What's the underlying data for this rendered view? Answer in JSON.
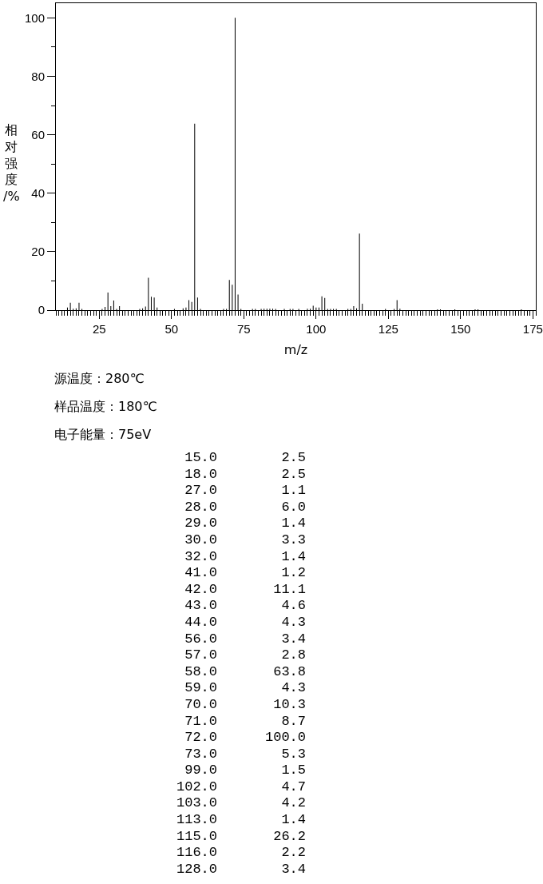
{
  "chart_data": [
    {
      "type": "bar",
      "xlabel": "m/z",
      "ylabel": "相对强度/%",
      "annotations": [
        "源温度：280℃",
        "样品温度：180℃",
        "电子能量：75eV"
      ],
      "x": [
        14,
        15,
        16,
        17,
        18,
        19,
        26,
        27,
        28,
        29,
        30,
        31,
        32,
        39,
        40,
        41,
        42,
        43,
        44,
        45,
        51,
        54,
        55,
        56,
        57,
        58,
        59,
        60,
        68,
        69,
        70,
        71,
        72,
        73,
        74,
        78,
        79,
        81,
        82,
        83,
        84,
        85,
        86,
        89,
        91,
        92,
        94,
        97,
        98,
        99,
        100,
        101,
        102,
        103,
        104,
        105,
        106,
        107,
        111,
        112,
        113,
        114,
        115,
        116,
        124,
        127,
        128,
        129,
        142,
        143,
        148,
        155,
        156,
        171
      ],
      "values": [
        0.9,
        2.5,
        0.5,
        0.6,
        2.5,
        0.4,
        0.4,
        1.1,
        6.0,
        1.4,
        3.3,
        0.4,
        1.4,
        0.4,
        0.6,
        1.2,
        11.1,
        4.6,
        4.3,
        0.9,
        0.4,
        0.6,
        0.9,
        3.4,
        2.8,
        63.8,
        4.3,
        0.4,
        0.4,
        0.4,
        10.3,
        8.7,
        100.0,
        5.3,
        0.4,
        0.4,
        0.4,
        0.4,
        0.5,
        0.5,
        0.5,
        0.5,
        0.4,
        0.4,
        0.4,
        0.4,
        0.4,
        0.5,
        0.5,
        1.5,
        0.9,
        0.9,
        4.7,
        4.2,
        0.4,
        0.4,
        0.4,
        0.4,
        0.4,
        0.4,
        1.4,
        0.6,
        26.2,
        2.2,
        0.4,
        0.4,
        3.4,
        0.5,
        0.3,
        0.3,
        0.3,
        0.3,
        0.3,
        0.3
      ],
      "color": "#000000",
      "xlim": [
        10,
        176
      ],
      "xticks": [
        {
          "value": 10,
          "label": null
        },
        {
          "value": 11,
          "label": null
        },
        {
          "value": 12,
          "label": null
        },
        {
          "value": 13,
          "label": null
        },
        {
          "value": 14,
          "label": null
        },
        {
          "value": 15,
          "label": null
        },
        {
          "value": 16,
          "label": null
        },
        {
          "value": 17,
          "label": null
        },
        {
          "value": 18,
          "label": null
        },
        {
          "value": 19,
          "label": null
        },
        {
          "value": 20,
          "label": null
        },
        {
          "value": 21,
          "label": null
        },
        {
          "value": 22,
          "label": null
        },
        {
          "value": 23,
          "label": null
        },
        {
          "value": 24,
          "label": null
        },
        25,
        {
          "value": 26,
          "label": null
        },
        {
          "value": 27,
          "label": null
        },
        {
          "value": 28,
          "label": null
        },
        {
          "value": 29,
          "label": null
        },
        {
          "value": 30,
          "label": null
        },
        {
          "value": 31,
          "label": null
        },
        {
          "value": 32,
          "label": null
        },
        {
          "value": 33,
          "label": null
        },
        {
          "value": 34,
          "label": null
        },
        {
          "value": 35,
          "label": null
        },
        {
          "value": 36,
          "label": null
        },
        {
          "value": 37,
          "label": null
        },
        {
          "value": 38,
          "label": null
        },
        {
          "value": 39,
          "label": null
        },
        {
          "value": 40,
          "label": null
        },
        {
          "value": 41,
          "label": null
        },
        {
          "value": 42,
          "label": null
        },
        {
          "value": 43,
          "label": null
        },
        {
          "value": 44,
          "label": null
        },
        {
          "value": 45,
          "label": null
        },
        {
          "value": 46,
          "label": null
        },
        {
          "value": 47,
          "label": null
        },
        {
          "value": 48,
          "label": null
        },
        {
          "value": 49,
          "label": null
        },
        50,
        {
          "value": 51,
          "label": null
        },
        {
          "value": 52,
          "label": null
        },
        {
          "value": 53,
          "label": null
        },
        {
          "value": 54,
          "label": null
        },
        {
          "value": 55,
          "label": null
        },
        {
          "value": 56,
          "label": null
        },
        {
          "value": 57,
          "label": null
        },
        {
          "value": 58,
          "label": null
        },
        {
          "value": 59,
          "label": null
        },
        {
          "value": 60,
          "label": null
        },
        {
          "value": 61,
          "label": null
        },
        {
          "value": 62,
          "label": null
        },
        {
          "value": 63,
          "label": null
        },
        {
          "value": 64,
          "label": null
        },
        {
          "value": 65,
          "label": null
        },
        {
          "value": 66,
          "label": null
        },
        {
          "value": 67,
          "label": null
        },
        {
          "value": 68,
          "label": null
        },
        {
          "value": 69,
          "label": null
        },
        {
          "value": 70,
          "label": null
        },
        {
          "value": 71,
          "label": null
        },
        {
          "value": 72,
          "label": null
        },
        {
          "value": 73,
          "label": null
        },
        {
          "value": 74,
          "label": null
        },
        75,
        {
          "value": 76,
          "label": null
        },
        {
          "value": 77,
          "label": null
        },
        {
          "value": 78,
          "label": null
        },
        {
          "value": 79,
          "label": null
        },
        {
          "value": 80,
          "label": null
        },
        {
          "value": 81,
          "label": null
        },
        {
          "value": 82,
          "label": null
        },
        {
          "value": 83,
          "label": null
        },
        {
          "value": 84,
          "label": null
        },
        {
          "value": 85,
          "label": null
        },
        {
          "value": 86,
          "label": null
        },
        {
          "value": 87,
          "label": null
        },
        {
          "value": 88,
          "label": null
        },
        {
          "value": 89,
          "label": null
        },
        {
          "value": 90,
          "label": null
        },
        {
          "value": 91,
          "label": null
        },
        {
          "value": 92,
          "label": null
        },
        {
          "value": 93,
          "label": null
        },
        {
          "value": 94,
          "label": null
        },
        {
          "value": 95,
          "label": null
        },
        {
          "value": 96,
          "label": null
        },
        {
          "value": 97,
          "label": null
        },
        {
          "value": 98,
          "label": null
        },
        {
          "value": 99,
          "label": null
        },
        100,
        {
          "value": 101,
          "label": null
        },
        {
          "value": 102,
          "label": null
        },
        {
          "value": 103,
          "label": null
        },
        {
          "value": 104,
          "label": null
        },
        {
          "value": 105,
          "label": null
        },
        {
          "value": 106,
          "label": null
        },
        {
          "value": 107,
          "label": null
        },
        {
          "value": 108,
          "label": null
        },
        {
          "value": 109,
          "label": null
        },
        {
          "value": 110,
          "label": null
        },
        {
          "value": 111,
          "label": null
        },
        {
          "value": 112,
          "label": null
        },
        {
          "value": 113,
          "label": null
        },
        {
          "value": 114,
          "label": null
        },
        {
          "value": 115,
          "label": null
        },
        {
          "value": 116,
          "label": null
        },
        {
          "value": 117,
          "label": null
        },
        {
          "value": 118,
          "label": null
        },
        {
          "value": 119,
          "label": null
        },
        {
          "value": 120,
          "label": null
        },
        {
          "value": 121,
          "label": null
        },
        {
          "value": 122,
          "label": null
        },
        {
          "value": 123,
          "label": null
        },
        {
          "value": 124,
          "label": null
        },
        125,
        {
          "value": 126,
          "label": null
        },
        {
          "value": 127,
          "label": null
        },
        {
          "value": 128,
          "label": null
        },
        {
          "value": 129,
          "label": null
        },
        {
          "value": 130,
          "label": null
        },
        {
          "value": 131,
          "label": null
        },
        {
          "value": 132,
          "label": null
        },
        {
          "value": 133,
          "label": null
        },
        {
          "value": 134,
          "label": null
        },
        {
          "value": 135,
          "label": null
        },
        {
          "value": 136,
          "label": null
        },
        {
          "value": 137,
          "label": null
        },
        {
          "value": 138,
          "label": null
        },
        {
          "value": 139,
          "label": null
        },
        {
          "value": 140,
          "label": null
        },
        {
          "value": 141,
          "label": null
        },
        {
          "value": 142,
          "label": null
        },
        {
          "value": 143,
          "label": null
        },
        {
          "value": 144,
          "label": null
        },
        {
          "value": 145,
          "label": null
        },
        {
          "value": 146,
          "label": null
        },
        {
          "value": 147,
          "label": null
        },
        {
          "value": 148,
          "label": null
        },
        {
          "value": 149,
          "label": null
        },
        150,
        {
          "value": 151,
          "label": null
        },
        {
          "value": 152,
          "label": null
        },
        {
          "value": 153,
          "label": null
        },
        {
          "value": 154,
          "label": null
        },
        {
          "value": 155,
          "label": null
        },
        {
          "value": 156,
          "label": null
        },
        {
          "value": 157,
          "label": null
        },
        {
          "value": 158,
          "label": null
        },
        {
          "value": 159,
          "label": null
        },
        {
          "value": 160,
          "label": null
        },
        {
          "value": 161,
          "label": null
        },
        {
          "value": 162,
          "label": null
        },
        {
          "value": 163,
          "label": null
        },
        {
          "value": 164,
          "label": null
        },
        {
          "value": 165,
          "label": null
        },
        {
          "value": 166,
          "label": null
        },
        {
          "value": 167,
          "label": null
        },
        {
          "value": 168,
          "label": null
        },
        {
          "value": 169,
          "label": null
        },
        {
          "value": 170,
          "label": null
        },
        {
          "value": 171,
          "label": null
        },
        {
          "value": 172,
          "label": null
        },
        {
          "value": 173,
          "label": null
        },
        {
          "value": 174,
          "label": null
        },
        175,
        {
          "value": 176,
          "label": null
        }
      ],
      "ylim": [
        0,
        105
      ],
      "yticks": [
        0,
        {
          "value": 10,
          "label": null
        },
        20,
        {
          "value": 30,
          "label": null
        },
        40,
        {
          "value": 50,
          "label": null
        },
        60,
        {
          "value": 70,
          "label": null
        },
        80,
        {
          "value": 90,
          "label": null
        },
        100
      ],
      "grid": false
    },
    {
      "type": "other",
      "categories": [
        "15.0",
        "18.0",
        "27.0",
        "28.0",
        "29.0",
        "30.0",
        "32.0",
        "41.0",
        "42.0",
        "43.0",
        "44.0",
        "56.0",
        "57.0",
        "58.0",
        "59.0",
        "70.0",
        "71.0",
        "72.0",
        "73.0",
        "99.0",
        "102.0",
        "103.0",
        "113.0",
        "115.0",
        "116.0",
        "128.0"
      ],
      "values": [
        2.5,
        2.5,
        1.1,
        6.0,
        1.4,
        3.3,
        1.4,
        1.2,
        11.1,
        4.6,
        4.3,
        3.4,
        2.8,
        63.8,
        4.3,
        10.3,
        8.7,
        100.0,
        5.3,
        1.5,
        4.7,
        4.2,
        1.4,
        26.2,
        2.2,
        3.4
      ],
      "value_labels": [
        "2.5",
        "2.5",
        "1.1",
        "6.0",
        "1.4",
        "3.3",
        "1.4",
        "1.2",
        "11.1",
        "4.6",
        "4.3",
        "3.4",
        "2.8",
        "63.8",
        "4.3",
        "10.3",
        "8.7",
        "100.0",
        "5.3",
        "1.5",
        "4.7",
        "4.2",
        "1.4",
        "26.2",
        "2.2",
        "3.4"
      ]
    }
  ]
}
